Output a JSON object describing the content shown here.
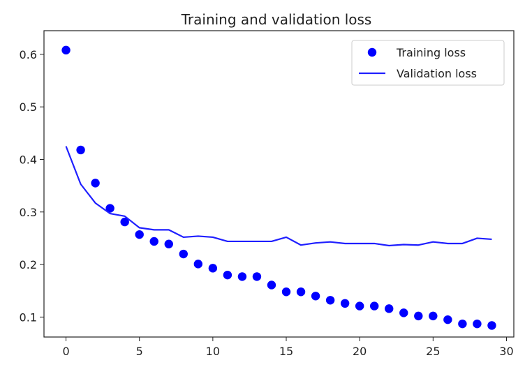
{
  "chart_data": {
    "type": "line",
    "title": "Training and validation loss",
    "xlabel": "",
    "ylabel": "",
    "xlim": [
      -1.5,
      30.5
    ],
    "ylim": [
      0.062,
      0.645
    ],
    "xticks": [
      0,
      5,
      10,
      15,
      20,
      25,
      30
    ],
    "yticks": [
      0.1,
      0.2,
      0.3,
      0.4,
      0.5,
      0.6
    ],
    "xtick_labels": [
      "0",
      "5",
      "10",
      "15",
      "20",
      "25",
      "30"
    ],
    "ytick_labels": [
      "0.1",
      "0.2",
      "0.3",
      "0.4",
      "0.5",
      "0.6"
    ],
    "grid": false,
    "legend_position": "top-right",
    "series": [
      {
        "name": "Training loss",
        "style": "scatter",
        "color": "#0000ff",
        "x": [
          0,
          1,
          2,
          3,
          4,
          5,
          6,
          7,
          8,
          9,
          10,
          11,
          12,
          13,
          14,
          15,
          16,
          17,
          18,
          19,
          20,
          21,
          22,
          23,
          24,
          25,
          26,
          27,
          28,
          29
        ],
        "values": [
          0.608,
          0.418,
          0.355,
          0.307,
          0.281,
          0.257,
          0.244,
          0.239,
          0.22,
          0.201,
          0.193,
          0.18,
          0.177,
          0.177,
          0.161,
          0.148,
          0.148,
          0.14,
          0.132,
          0.126,
          0.121,
          0.121,
          0.116,
          0.108,
          0.102,
          0.102,
          0.095,
          0.087,
          0.087,
          0.084
        ]
      },
      {
        "name": "Validation loss",
        "style": "line",
        "color": "#1f1fff",
        "x": [
          0,
          1,
          2,
          3,
          4,
          5,
          6,
          7,
          8,
          9,
          10,
          11,
          12,
          13,
          14,
          15,
          16,
          17,
          18,
          19,
          20,
          21,
          22,
          23,
          24,
          25,
          26,
          27,
          28,
          29
        ],
        "values": [
          0.425,
          0.353,
          0.317,
          0.297,
          0.292,
          0.27,
          0.266,
          0.266,
          0.252,
          0.254,
          0.252,
          0.244,
          0.244,
          0.244,
          0.244,
          0.252,
          0.237,
          0.241,
          0.243,
          0.24,
          0.24,
          0.24,
          0.236,
          0.238,
          0.237,
          0.243,
          0.24,
          0.24,
          0.25,
          0.248
        ]
      }
    ]
  }
}
